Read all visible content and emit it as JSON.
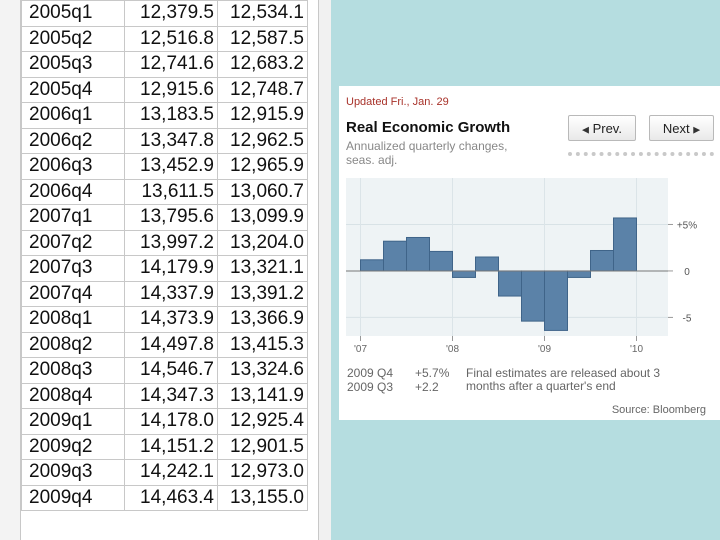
{
  "spreadsheet": {
    "rows": [
      [
        "2005q1",
        "12,379.5",
        "12,534.1"
      ],
      [
        "2005q2",
        "12,516.8",
        "12,587.5"
      ],
      [
        "2005q3",
        "12,741.6",
        "12,683.2"
      ],
      [
        "2005q4",
        "12,915.6",
        "12,748.7"
      ],
      [
        "2006q1",
        "13,183.5",
        "12,915.9"
      ],
      [
        "2006q2",
        "13,347.8",
        "12,962.5"
      ],
      [
        "2006q3",
        "13,452.9",
        "12,965.9"
      ],
      [
        "2006q4",
        "13,611.5",
        "13,060.7"
      ],
      [
        "2007q1",
        "13,795.6",
        "13,099.9"
      ],
      [
        "2007q2",
        "13,997.2",
        "13,204.0"
      ],
      [
        "2007q3",
        "14,179.9",
        "13,321.1"
      ],
      [
        "2007q4",
        "14,337.9",
        "13,391.2"
      ],
      [
        "2008q1",
        "14,373.9",
        "13,366.9"
      ],
      [
        "2008q2",
        "14,497.8",
        "13,415.3"
      ],
      [
        "2008q3",
        "14,546.7",
        "13,324.6"
      ],
      [
        "2008q4",
        "14,347.3",
        "13,141.9"
      ],
      [
        "2009q1",
        "14,178.0",
        "12,925.4"
      ],
      [
        "2009q2",
        "14,151.2",
        "12,901.5"
      ],
      [
        "2009q3",
        "14,242.1",
        "12,973.0"
      ],
      [
        "2009q4",
        "14,463.4",
        "13,155.0"
      ]
    ]
  },
  "panel": {
    "updated": "Updated Fri., Jan. 29",
    "title": "Real Economic Growth",
    "subtitle": "Annualized quarterly changes, seas. adj.",
    "prev_label": "Prev.",
    "next_label": "Next",
    "footer": {
      "label1": "2009 Q4",
      "value1": "+5.7%",
      "label2": "2009 Q3",
      "value2": "+2.2",
      "note": "Final estimates are released about 3 months after a quarter's end",
      "source": "Source: Bloomberg"
    }
  },
  "chart_data": {
    "type": "bar",
    "title": "Real Economic Growth",
    "subtitle": "Annualized quarterly changes, seas. adj.",
    "categories": [
      "2007q1",
      "2007q2",
      "2007q3",
      "2007q4",
      "2008q1",
      "2008q2",
      "2008q3",
      "2008q4",
      "2009q1",
      "2009q2",
      "2009q3",
      "2009q4"
    ],
    "values": [
      1.2,
      3.2,
      3.6,
      2.1,
      -0.7,
      1.5,
      -2.7,
      -5.4,
      -6.4,
      -0.7,
      2.2,
      5.7
    ],
    "ylim": [
      -7,
      10
    ],
    "yticks": [
      {
        "value": 5,
        "label": "+5%"
      },
      {
        "value": 0,
        "label": "0"
      },
      {
        "value": -5,
        "label": "-5"
      }
    ],
    "xticks": [
      {
        "category": "2007q1",
        "label": "'07"
      },
      {
        "category": "2008q1",
        "label": "'08"
      },
      {
        "category": "2009q1",
        "label": "'09"
      },
      {
        "category": "2010q1",
        "label": "'10"
      }
    ],
    "grid": true,
    "bar_color": "#5b82a8",
    "bar_edge_color": "#3f6489",
    "plot_bg": "#eef3f5"
  }
}
